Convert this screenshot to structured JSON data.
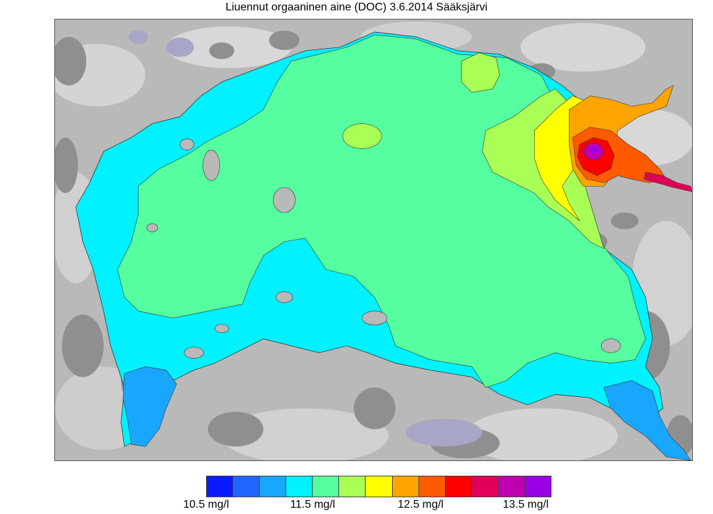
{
  "title": "Liuennut orgaaninen aine (DOC) 3.6.2014 Sääksjärvi",
  "legend": {
    "colors": [
      "#0a1bff",
      "#1f66ff",
      "#19a6ff",
      "#00f1ff",
      "#55ff9f",
      "#a9ff55",
      "#ffff00",
      "#ffa400",
      "#ff5a00",
      "#ff0000",
      "#e0005a",
      "#c000b0",
      "#9a00e6"
    ],
    "labels": [
      "10.5 mg/l",
      "11.5 mg/l",
      "12.5 mg/l",
      "13.5 mg/l"
    ]
  },
  "map": {
    "land_color": "#b9b9b9",
    "land_dark": "#8d8d8d",
    "land_light": "#d9d9d9",
    "lake_color_dominant": "#55ff9f"
  }
}
